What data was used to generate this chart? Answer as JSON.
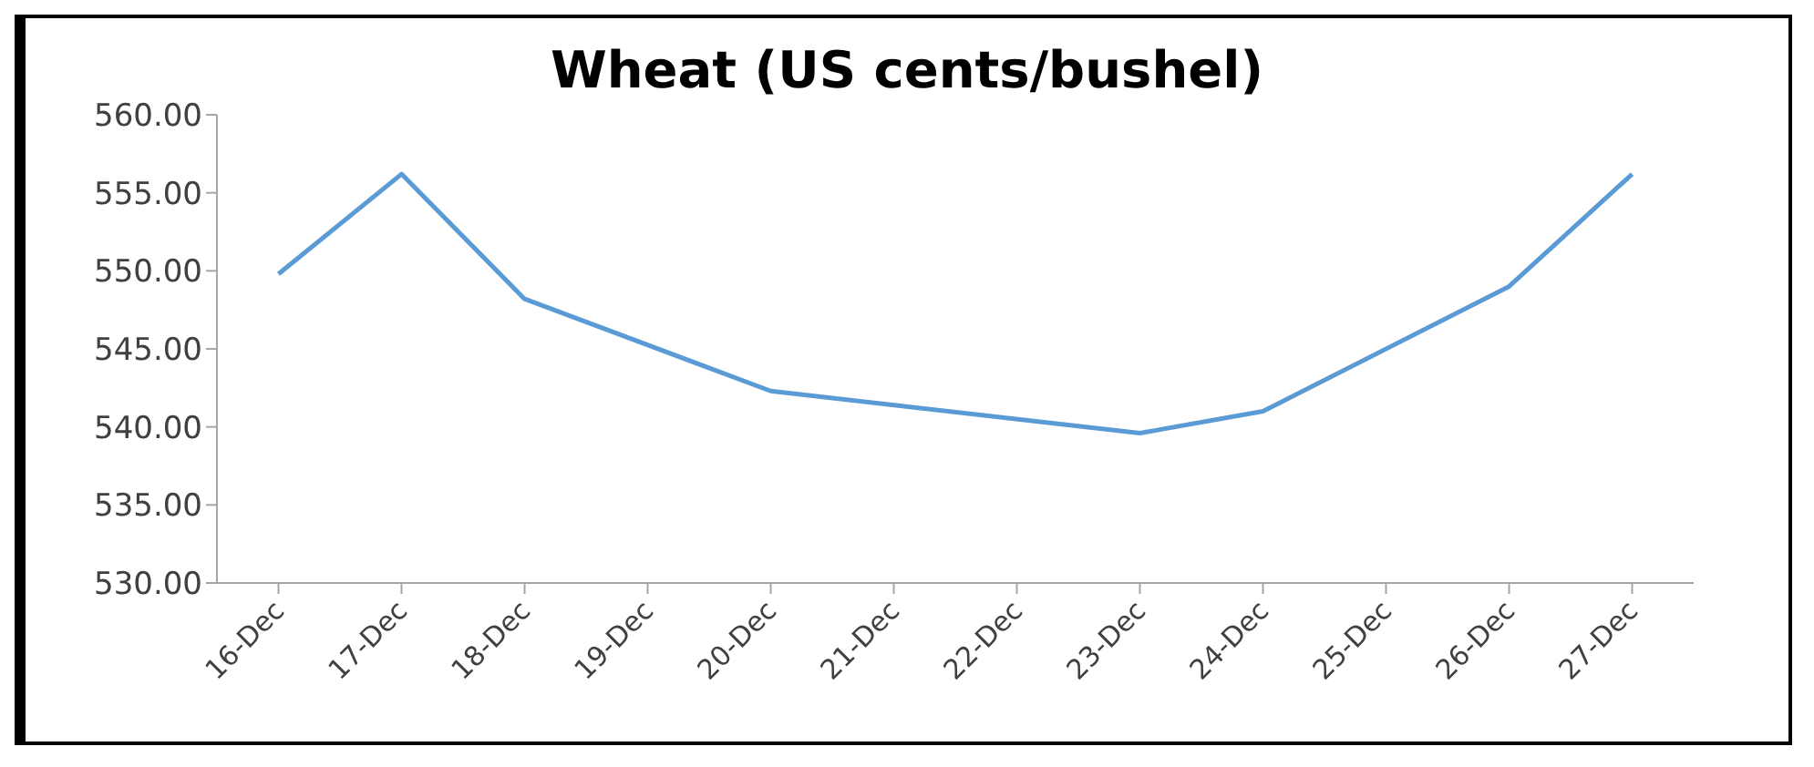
{
  "chart_data": {
    "type": "line",
    "title": "Wheat (US cents/bushel)",
    "x": [
      "--12-16",
      "--12-17",
      "--12-18",
      "--12-20",
      "--12-23",
      "--12-24",
      "--12-26",
      "--12-27"
    ],
    "series": [
      {
        "color": "#5b9bd5",
        "values": [
          549.8,
          556.2,
          548.2,
          542.3,
          539.6,
          541.0,
          549.0,
          556.2
        ]
      }
    ],
    "xlim": [
      "--12-15T12:00",
      "--12-27T12:00"
    ],
    "xticks": [
      {
        "value": "--12-16",
        "label": "16-Dec"
      },
      {
        "value": "--12-17",
        "label": "17-Dec"
      },
      {
        "value": "--12-18",
        "label": "18-Dec"
      },
      {
        "value": "--12-19",
        "label": "19-Dec"
      },
      {
        "value": "--12-20",
        "label": "20-Dec"
      },
      {
        "value": "--12-21",
        "label": "21-Dec"
      },
      {
        "value": "--12-22",
        "label": "22-Dec"
      },
      {
        "value": "--12-23",
        "label": "23-Dec"
      },
      {
        "value": "--12-24",
        "label": "24-Dec"
      },
      {
        "value": "--12-25",
        "label": "25-Dec"
      },
      {
        "value": "--12-26",
        "label": "26-Dec"
      },
      {
        "value": "--12-27",
        "label": "27-Dec"
      }
    ],
    "ylim": [
      530,
      560
    ],
    "yticks": [
      {
        "value": 530,
        "label": "530.00"
      },
      {
        "value": 535,
        "label": "535.00"
      },
      {
        "value": 540,
        "label": "540.00"
      },
      {
        "value": 545,
        "label": "545.00"
      },
      {
        "value": 550,
        "label": "550.00"
      },
      {
        "value": 555,
        "label": "555.00"
      },
      {
        "value": 560,
        "label": "560.00"
      }
    ],
    "grid": false,
    "marker": "none",
    "line_style": "solid"
  }
}
